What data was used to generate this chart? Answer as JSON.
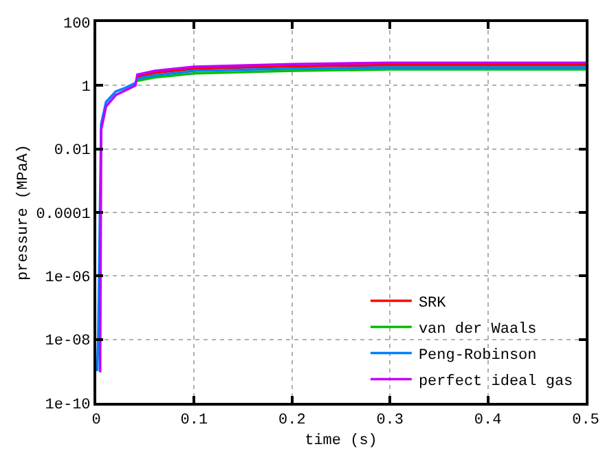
{
  "chart_data": {
    "type": "line",
    "xlabel": "time (s)",
    "ylabel": "pressure (MPaA)",
    "log": "y",
    "grid": true,
    "legend": "bottom right",
    "line_style": "solid",
    "marker": "none",
    "xlim": [
      0,
      0.5
    ],
    "xticks": [
      0,
      0.1,
      0.2,
      0.3,
      0.4,
      0.5
    ],
    "ylim": [
      1e-10,
      100
    ],
    "yticks": [
      {
        "value": 1e-10,
        "label": "1e-10"
      },
      {
        "value": 1e-08,
        "label": "1e-08"
      },
      {
        "value": 1e-06,
        "label": "1e-06"
      },
      {
        "value": 0.0001,
        "label": "0.0001"
      },
      {
        "value": 0.01,
        "label": "0.01"
      },
      {
        "value": 1,
        "label": "1"
      },
      {
        "value": 100,
        "label": "100"
      }
    ],
    "x": [
      0.003,
      0.004,
      0.005,
      0.01,
      0.02,
      0.03,
      0.04,
      0.042,
      0.06,
      0.1,
      0.2,
      0.3,
      0.4,
      0.5
    ],
    "series": [
      {
        "name": "SRK",
        "color": "#ff0000",
        "values": [
          null,
          null,
          null,
          null,
          null,
          null,
          null,
          1.9,
          2.5,
          3.4,
          4.0,
          4.4,
          4.4,
          4.4
        ]
      },
      {
        "name": "van der Waals",
        "color": "#00c000",
        "values": [
          null,
          null,
          null,
          null,
          null,
          null,
          null,
          1.4,
          1.8,
          2.4,
          2.9,
          3.2,
          3.2,
          3.2
        ]
      },
      {
        "name": "Peng-Robinson",
        "color": "#0080ff",
        "x": [
          0.001,
          0.002,
          0.005,
          0.01,
          0.02,
          0.03,
          0.04,
          0.042,
          0.06,
          0.1,
          0.2,
          0.3,
          0.4,
          0.5
        ],
        "values": [
          1e-09,
          1e-08,
          0.06,
          0.3,
          0.65,
          0.85,
          1.2,
          1.65,
          2.1,
          2.9,
          3.4,
          3.7,
          3.7,
          3.7
        ]
      },
      {
        "name": "perfect ideal gas",
        "color": "#c000ff",
        "values": [
          1e-09,
          1e-09,
          0.04,
          0.22,
          0.5,
          0.7,
          1.0,
          2.2,
          2.9,
          3.9,
          4.7,
          5.2,
          5.2,
          5.2
        ]
      }
    ]
  }
}
